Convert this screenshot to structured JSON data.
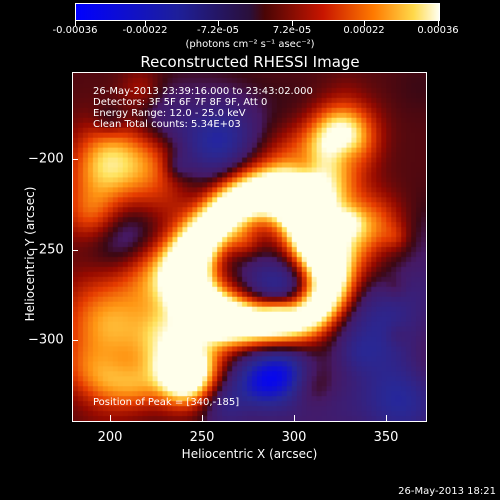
{
  "colorbar": {
    "labels": [
      "-0.00036",
      "-0.00022",
      "-7.2e-05",
      "7.2e-05",
      "0.00022",
      "0.00036"
    ],
    "units": "(photons cm⁻² s⁻¹ asec⁻²)",
    "range": [
      -0.00036,
      0.00036
    ]
  },
  "title": "Reconstructed RHESSI Image",
  "info": {
    "time": "26-May-2013 23:39:16.000 to 23:43:02.000",
    "detectors": "Detectors: 3F 5F 6F 7F 8F 9F, Att 0",
    "energy": "Energy Range: 12.0 - 25.0 keV",
    "clean": "Clean    Total counts: 5.34E+03",
    "peak": "Position of Peak = [340,-185]"
  },
  "axes": {
    "xlabel": "Heliocentric X (arcsec)",
    "ylabel": "Heliocentric Y (arcsec)",
    "xticks": [
      "200",
      "250",
      "300",
      "350"
    ],
    "yticks": [
      "−200",
      "−250",
      "−300"
    ],
    "xlim": [
      183,
      375
    ],
    "ylim": [
      -351,
      -162
    ]
  },
  "timestamp": "26-May-2013 18:21"
}
